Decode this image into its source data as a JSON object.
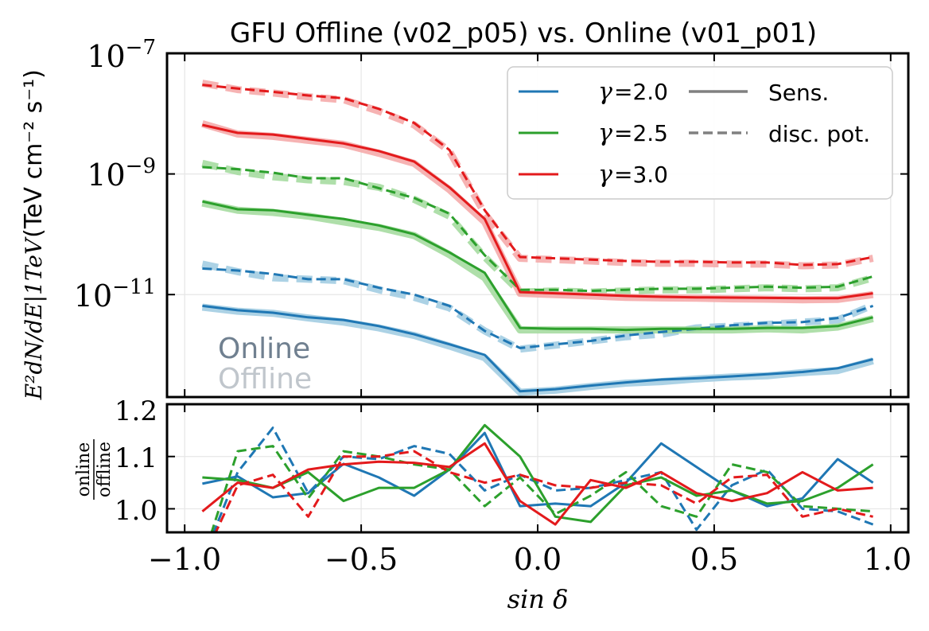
{
  "chart_data": [
    {
      "type": "line",
      "title": "GFU Offline (v02_p05) vs. Online (v01_p01)",
      "xlabel": "sin δ",
      "ylabel_main": "E²dN/dE|1TeV",
      "ylabel_units": "(TeV cm⁻² s⁻¹)",
      "yscale": "log",
      "xlim": [
        -1.05,
        1.05
      ],
      "ylim": [
        2e-13,
        1e-07
      ],
      "yticks": [
        {
          "value": 1e-11,
          "base": "10",
          "exp": "−11"
        },
        {
          "value": 1e-09,
          "base": "10",
          "exp": "−9"
        },
        {
          "value": 1e-07,
          "base": "10",
          "exp": "−7"
        }
      ],
      "grid": true,
      "legend_position": "top-right",
      "legend": {
        "gamma_symbol": "γ",
        "gamma_entries": [
          "=2.0",
          "=2.5",
          "=3.0"
        ],
        "style_entries": [
          "Sens.",
          "disc. pot."
        ]
      },
      "annotations": {
        "online": "Online",
        "offline": "Offline"
      },
      "colors": {
        "gamma_2.0": "#1f77b4",
        "gamma_2.5": "#2ca02c",
        "gamma_3.0": "#e31a1c",
        "offline_2.0": "#9ecae1",
        "offline_2.5": "#a1d99b",
        "offline_3.0": "#f4a6a6",
        "online_text": "#708090",
        "offline_text": "#c0c6cc"
      },
      "x": [
        -0.95,
        -0.85,
        -0.75,
        -0.65,
        -0.55,
        -0.45,
        -0.35,
        -0.25,
        -0.15,
        -0.05,
        0.05,
        0.15,
        0.25,
        0.35,
        0.45,
        0.55,
        0.65,
        0.75,
        0.85,
        0.95
      ],
      "series": [
        {
          "gamma": "2.0",
          "kind": "Sens.",
          "online": [
            6.5e-12,
            5.5e-12,
            5e-12,
            4.2e-12,
            3.8e-12,
            3e-12,
            2.2e-12,
            1.5e-12,
            1e-12,
            2.5e-13,
            2.7e-13,
            3.1e-13,
            3.5e-13,
            3.9e-13,
            4.1e-13,
            4.4e-13,
            4.8e-13,
            5.2e-13,
            6e-13,
            8.5e-13
          ],
          "offline": [
            6.2e-12,
            5.3e-12,
            4.9e-12,
            4.1e-12,
            3.5e-12,
            2.8e-12,
            2.1e-12,
            1.4e-12,
            9e-13,
            2.4e-13,
            2.6e-13,
            3e-13,
            3.4e-13,
            3.6e-13,
            4e-13,
            4.3e-13,
            4.5e-13,
            5.1e-13,
            5.5e-13,
            8e-13
          ]
        },
        {
          "gamma": "2.0",
          "kind": "disc. pot.",
          "online": [
            2.7e-11,
            2.5e-11,
            2.2e-11,
            1.8e-11,
            1.8e-11,
            1.3e-11,
            1e-11,
            6.5e-12,
            2.5e-12,
            1.3e-12,
            1.5e-12,
            1.7e-12,
            2.1e-12,
            2.4e-12,
            2.7e-12,
            3.1e-12,
            3.4e-12,
            3.5e-12,
            4.1e-12,
            6.5e-12
          ],
          "offline": [
            3.2e-11,
            2.4e-11,
            1.9e-11,
            1.8e-11,
            1.7e-11,
            1.2e-11,
            9e-12,
            6e-12,
            2.5e-12,
            1.25e-12,
            1.45e-12,
            1.7e-12,
            2e-12,
            2.2e-12,
            2.8e-12,
            3e-12,
            3.2e-12,
            3.5e-12,
            3.8e-12,
            6.7e-12
          ]
        },
        {
          "gamma": "2.5",
          "kind": "Sens.",
          "online": [
            3.5e-10,
            2.6e-10,
            2.5e-10,
            2.1e-10,
            1.8e-10,
            1.4e-10,
            1e-10,
            5e-11,
            2.3e-11,
            2.8e-12,
            2.7e-12,
            2.7e-12,
            2.6e-12,
            2.7e-12,
            2.7e-12,
            2.7e-12,
            2.8e-12,
            2.8e-12,
            3e-12,
            4.2e-12
          ],
          "offline": [
            3.3e-10,
            2.5e-10,
            2.3e-10,
            2e-10,
            1.6e-10,
            1.3e-10,
            9.5e-11,
            4.6e-11,
            1.9e-11,
            2.6e-12,
            2.6e-12,
            2.6e-12,
            2.6e-12,
            2.6e-12,
            2.6e-12,
            2.6e-12,
            2.7e-12,
            2.6e-12,
            2.9e-12,
            4e-12
          ]
        },
        {
          "gamma": "2.5",
          "kind": "disc. pot.",
          "online": [
            1.3e-09,
            1.2e-09,
            1.05e-09,
            8.5e-10,
            8.5e-10,
            5.8e-10,
            4e-10,
            2.2e-10,
            4.5e-11,
            1.2e-11,
            1.2e-11,
            1.15e-11,
            1.2e-11,
            1.25e-11,
            1.25e-11,
            1.3e-11,
            1.35e-11,
            1.3e-11,
            1.35e-11,
            2e-11
          ],
          "offline": [
            1.5e-09,
            1.1e-09,
            9e-10,
            8e-10,
            7.5e-10,
            6e-10,
            3.8e-10,
            2e-10,
            4.2e-11,
            1.1e-11,
            1.15e-11,
            1.1e-11,
            1.15e-11,
            1.2e-11,
            1.2e-11,
            1.25e-11,
            1.3e-11,
            1.25e-11,
            1.3e-11,
            1.9e-11
          ]
        },
        {
          "gamma": "3.0",
          "kind": "Sens.",
          "online": [
            6.5e-09,
            4.8e-09,
            4.5e-09,
            3.8e-09,
            3.2e-09,
            2.4e-09,
            1.6e-09,
            6e-10,
            1.8e-10,
            1.1e-11,
            1.05e-11,
            1e-11,
            9.5e-12,
            9.2e-12,
            9e-12,
            8.9e-12,
            8.8e-12,
            8.7e-12,
            8.7e-12,
            1.05e-11
          ],
          "offline": [
            6.8e-09,
            4.6e-09,
            4.2e-09,
            3.6e-09,
            3.1e-09,
            2.2e-09,
            1.5e-09,
            5.5e-10,
            1.6e-10,
            1.05e-11,
            1e-11,
            9.5e-12,
            9e-12,
            8.8e-12,
            8.7e-12,
            8.5e-12,
            8.4e-12,
            8.2e-12,
            8.3e-12,
            1e-11
          ]
        },
        {
          "gamma": "3.0",
          "kind": "disc. pot.",
          "online": [
            3e-08,
            2.6e-08,
            2.3e-08,
            2e-08,
            1.8e-08,
            1.2e-08,
            7e-09,
            2.5e-09,
            2.5e-10,
            4.2e-11,
            4e-11,
            3.8e-11,
            3.6e-11,
            3.5e-11,
            3.5e-11,
            3.4e-11,
            3.4e-11,
            3.1e-11,
            3.2e-11,
            4.2e-11
          ],
          "offline": [
            3.2e-08,
            2.5e-08,
            2.2e-08,
            1.9e-08,
            1.7e-08,
            1.1e-08,
            6.5e-09,
            2.4e-09,
            2.2e-10,
            4e-11,
            3.8e-11,
            3.6e-11,
            3.4e-11,
            3.3e-11,
            3.3e-11,
            3.2e-11,
            3.2e-11,
            3e-11,
            3.1e-11,
            4e-11
          ]
        }
      ]
    },
    {
      "type": "line",
      "xlabel": "sin δ",
      "ylabel_num": "online",
      "ylabel_den": "offline",
      "xlim": [
        -1.05,
        1.05
      ],
      "ylim": [
        0.955,
        1.2
      ],
      "xticks": [
        {
          "value": -1.0,
          "label": "−1.0"
        },
        {
          "value": -0.5,
          "label": "−0.5"
        },
        {
          "value": 0.0,
          "label": "0.0"
        },
        {
          "value": 0.5,
          "label": "0.5"
        },
        {
          "value": 1.0,
          "label": "1.0"
        }
      ],
      "yticks": [
        {
          "value": 1.0,
          "label": "1.0"
        },
        {
          "value": 1.1,
          "label": "1.1"
        },
        {
          "value": 1.2,
          "label": "1.2"
        }
      ],
      "grid": true,
      "x": [
        -0.95,
        -0.85,
        -0.75,
        -0.65,
        -0.55,
        -0.45,
        -0.35,
        -0.25,
        -0.15,
        -0.05,
        0.05,
        0.15,
        0.25,
        0.35,
        0.45,
        0.55,
        0.65,
        0.75,
        0.85,
        0.95
      ],
      "series": [
        {
          "gamma": "2.0",
          "kind": "Sens.",
          "values": [
            1.048,
            1.062,
            1.022,
            1.03,
            1.086,
            1.06,
            1.025,
            1.075,
            1.145,
            1.005,
            1.01,
            1.005,
            1.05,
            1.125,
            1.08,
            1.035,
            1.005,
            1.02,
            1.095,
            1.05
          ]
        },
        {
          "gamma": "2.0",
          "kind": "disc. pot.",
          "values": [
            0.9,
            1.07,
            1.155,
            1.03,
            1.1,
            1.095,
            1.12,
            1.105,
            1.035,
            1.065,
            1.035,
            1.04,
            1.055,
            1.07,
            0.96,
            1.045,
            1.075,
            1.0,
            0.995,
            0.97
          ]
        },
        {
          "gamma": "2.5",
          "kind": "Sens.",
          "values": [
            1.06,
            1.055,
            1.04,
            1.07,
            1.015,
            1.04,
            1.04,
            1.075,
            1.16,
            1.1,
            0.985,
            0.975,
            1.045,
            1.06,
            1.025,
            1.035,
            1.01,
            1.015,
            1.04,
            1.085
          ]
        },
        {
          "gamma": "2.5",
          "kind": "disc. pot.",
          "values": [
            0.9,
            1.11,
            1.12,
            1.02,
            1.11,
            1.1,
            1.085,
            1.075,
            1.005,
            1.06,
            0.99,
            1.025,
            1.07,
            1.005,
            0.985,
            1.085,
            1.07,
            1.005,
            1.0,
            0.995
          ]
        },
        {
          "gamma": "3.0",
          "kind": "Sens.",
          "values": [
            0.995,
            1.05,
            1.04,
            1.075,
            1.085,
            1.09,
            1.088,
            1.08,
            1.125,
            1.015,
            0.97,
            1.055,
            1.04,
            1.07,
            1.03,
            1.015,
            1.03,
            1.07,
            1.035,
            1.04
          ]
        },
        {
          "gamma": "3.0",
          "kind": "disc. pot.",
          "values": [
            0.9,
            1.045,
            1.065,
            0.985,
            1.1,
            1.1,
            1.11,
            1.07,
            1.05,
            1.065,
            1.045,
            1.04,
            1.05,
            1.045,
            1.01,
            1.06,
            1.065,
            0.985,
            1.0,
            0.985
          ]
        }
      ]
    }
  ]
}
